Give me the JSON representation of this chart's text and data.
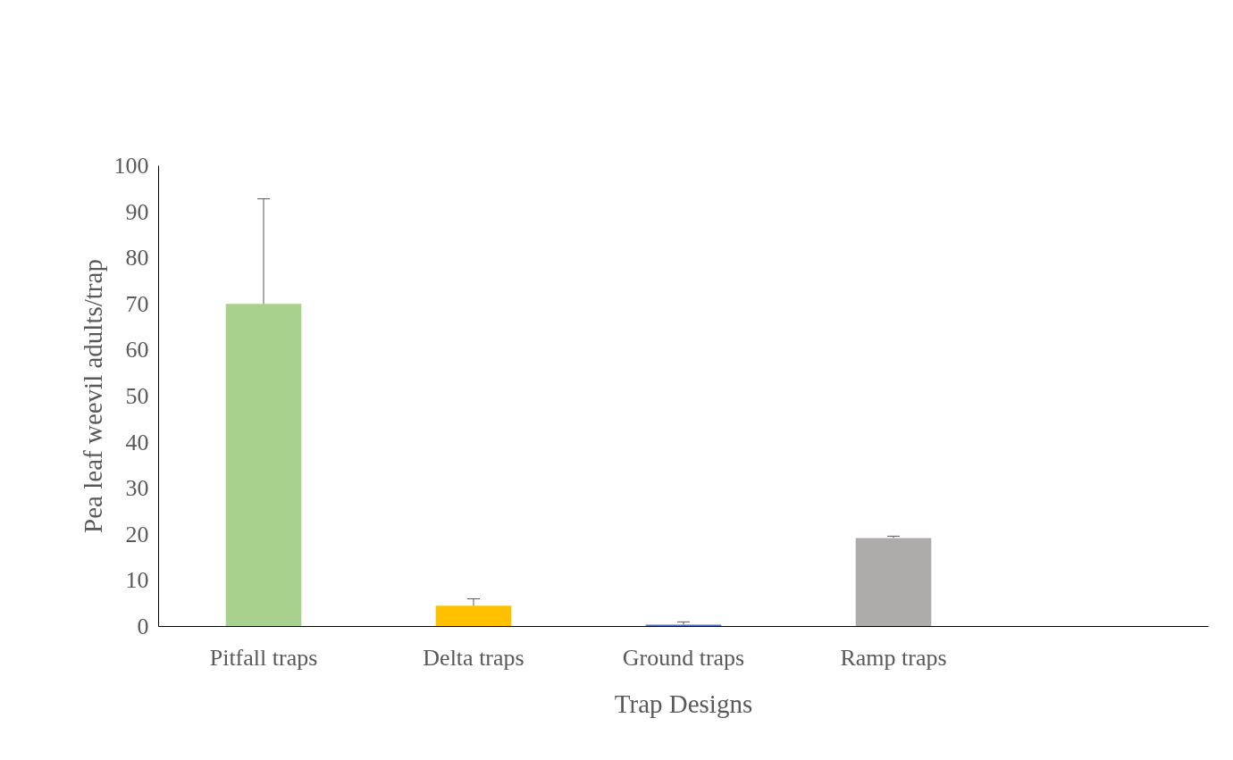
{
  "chart_data": {
    "type": "bar",
    "xlabel": "Trap Designs",
    "ylabel": "Pea leaf weevil adults/trap",
    "categories": [
      "Pitfall traps",
      "Delta traps",
      "Ground traps",
      "Ramp traps",
      null
    ],
    "values": [
      70.0,
      4.5,
      0.4,
      19.2,
      null
    ],
    "colors": [
      "#a9d18e",
      "#ffc000",
      "#4472c4",
      "#afabab",
      "#a5a5a5"
    ],
    "errors": [
      [
        70.0,
        92.8
      ],
      [
        4.5,
        6.0
      ],
      [
        0.4,
        1.0
      ],
      [
        19.2,
        19.6
      ],
      null
    ],
    "ylim": [
      0,
      100
    ],
    "yticks": [
      0,
      10,
      20,
      30,
      40,
      50,
      60,
      70,
      80,
      90,
      100
    ],
    "grid": false
  }
}
